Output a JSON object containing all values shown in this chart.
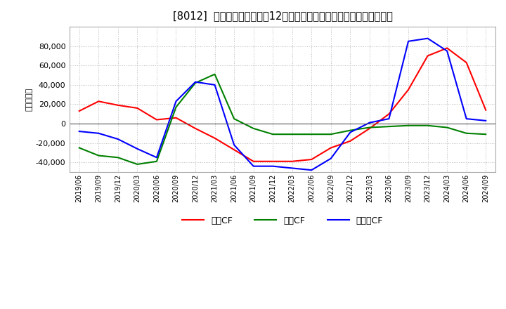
{
  "title": "[8012]  キャッシュフローの12か月移動合計の対前年同期増減額の推移",
  "ylabel": "（百万円）",
  "background_color": "#ffffff",
  "plot_bg_color": "#ffffff",
  "grid_color": "#aaaaaa",
  "x_labels": [
    "2019/06",
    "2019/09",
    "2019/12",
    "2020/03",
    "2020/06",
    "2020/09",
    "2020/12",
    "2021/03",
    "2021/06",
    "2021/09",
    "2021/12",
    "2022/03",
    "2022/06",
    "2022/09",
    "2022/12",
    "2023/03",
    "2023/06",
    "2023/09",
    "2023/12",
    "2024/03",
    "2024/06",
    "2024/09"
  ],
  "eigyo_cf": [
    13000,
    23000,
    19000,
    16000,
    4000,
    6000,
    -5000,
    -15000,
    -27000,
    -39000,
    -39000,
    -39000,
    -37000,
    -25000,
    -18000,
    -5000,
    10000,
    35000,
    70000,
    78000,
    63000,
    14000
  ],
  "toshi_cf": [
    -25000,
    -33000,
    -35000,
    -42000,
    -39000,
    17000,
    42000,
    51000,
    5000,
    -5000,
    -11000,
    -11000,
    -11000,
    -11000,
    -7000,
    -4000,
    -3000,
    -2000,
    -2000,
    -4000,
    -10000,
    -11000
  ],
  "free_cf": [
    -8000,
    -10000,
    -16000,
    -26000,
    -35000,
    23000,
    43000,
    40000,
    -22000,
    -44000,
    -44000,
    -46000,
    -48000,
    -36000,
    -9000,
    1000,
    5000,
    85000,
    88000,
    75000,
    5000,
    3000
  ],
  "eigyo_color": "#ff0000",
  "toshi_color": "#008000",
  "free_color": "#0000ff",
  "ylim": [
    -50000,
    100000
  ],
  "yticks": [
    -40000,
    -20000,
    0,
    20000,
    40000,
    60000,
    80000
  ],
  "legend_labels": [
    "営業CF",
    "投資CF",
    "フリーCF"
  ]
}
